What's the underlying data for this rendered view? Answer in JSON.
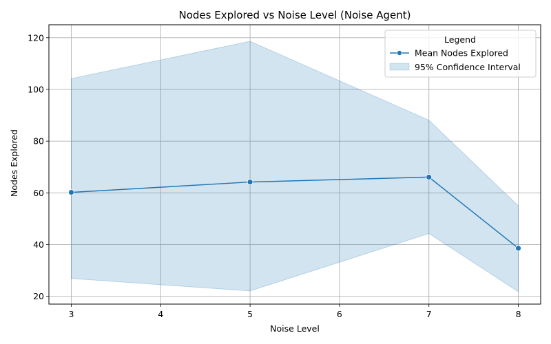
{
  "chart_data": {
    "type": "line",
    "title": "Nodes Explored vs Noise Level (Noise Agent)",
    "xlabel": "Noise Level",
    "ylabel": "Nodes Explored",
    "x": [
      3,
      5,
      7,
      8
    ],
    "xticks": [
      3,
      4,
      5,
      6,
      7,
      8
    ],
    "yticks": [
      20,
      40,
      60,
      80,
      100,
      120
    ],
    "xlim": [
      2.75,
      8.25
    ],
    "ylim": [
      17,
      125
    ],
    "grid": true,
    "legend_title": "Legend",
    "legend_position": "top-right",
    "series": [
      {
        "name": "Mean Nodes Explored",
        "kind": "line-with-markers",
        "values": [
          60.2,
          64.2,
          66.1,
          38.6
        ],
        "color": "#1f77b4"
      },
      {
        "name": "95% Confidence Interval",
        "kind": "band",
        "lower": [
          26.9,
          22.1,
          44.3,
          21.8
        ],
        "upper": [
          104.2,
          118.6,
          88.1,
          55.0
        ],
        "color": "#1f77b4"
      }
    ]
  }
}
